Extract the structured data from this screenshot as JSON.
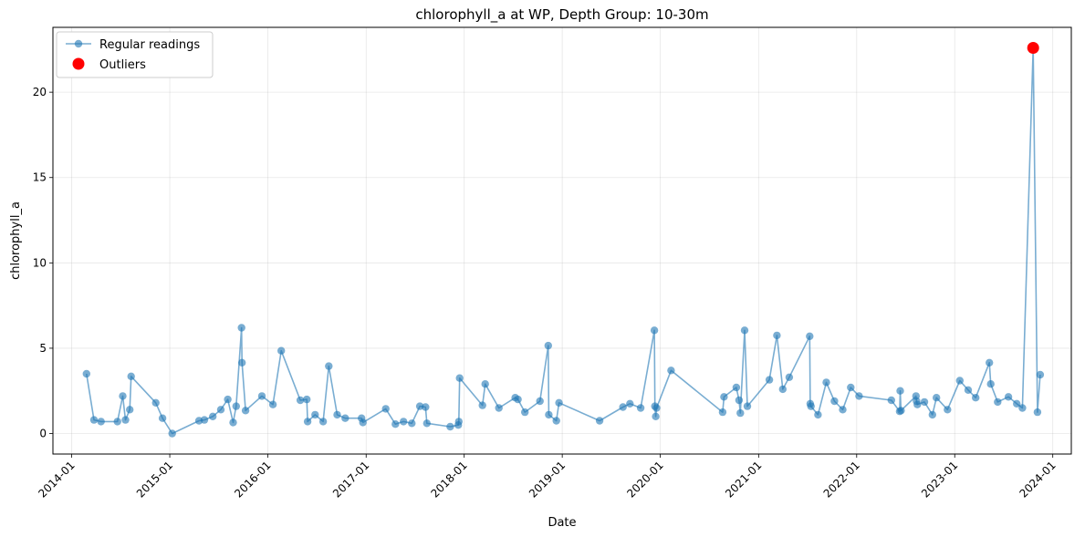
{
  "chart_data": {
    "type": "line",
    "title": "chlorophyll_a at WP, Depth Group: 10-30m",
    "xlabel": "Date",
    "ylabel": "chlorophyll_a",
    "x_tick_labels": [
      "2014-01",
      "2015-01",
      "2016-01",
      "2017-01",
      "2018-01",
      "2019-01",
      "2020-01",
      "2021-01",
      "2022-01",
      "2023-01",
      "2024-01"
    ],
    "y_ticks": [
      0,
      5,
      10,
      15,
      20
    ],
    "xlim": [
      "2013-10-23",
      "2024-03-10"
    ],
    "ylim": [
      -1.2,
      23.8
    ],
    "grid": true,
    "legend_position": "top-left",
    "colors": {
      "regular": "#1f77b4",
      "outlier": "#ff0000"
    },
    "series": [
      {
        "name": "Regular readings",
        "style": "line-marker",
        "points": [
          [
            "2014-02-25",
            3.5
          ],
          [
            "2014-03-25",
            0.8
          ],
          [
            "2014-04-20",
            0.7
          ],
          [
            "2014-06-20",
            0.7
          ],
          [
            "2014-07-10",
            2.2
          ],
          [
            "2014-07-20",
            0.8
          ],
          [
            "2014-08-05",
            1.4
          ],
          [
            "2014-08-10",
            3.35
          ],
          [
            "2014-11-10",
            1.8
          ],
          [
            "2014-12-05",
            0.9
          ],
          [
            "2015-01-10",
            0.0
          ],
          [
            "2015-04-20",
            0.75
          ],
          [
            "2015-05-10",
            0.8
          ],
          [
            "2015-06-10",
            1.0
          ],
          [
            "2015-07-10",
            1.4
          ],
          [
            "2015-08-05",
            2.0
          ],
          [
            "2015-08-25",
            0.65
          ],
          [
            "2015-09-05",
            1.6
          ],
          [
            "2015-09-25",
            6.2
          ],
          [
            "2015-09-27",
            4.15
          ],
          [
            "2015-10-10",
            1.35
          ],
          [
            "2015-12-10",
            2.2
          ],
          [
            "2016-01-20",
            1.7
          ],
          [
            "2016-02-20",
            4.85
          ],
          [
            "2016-05-01",
            1.95
          ],
          [
            "2016-05-25",
            2.0
          ],
          [
            "2016-05-28",
            0.7
          ],
          [
            "2016-06-25",
            1.1
          ],
          [
            "2016-07-25",
            0.7
          ],
          [
            "2016-08-15",
            3.95
          ],
          [
            "2016-09-15",
            1.1
          ],
          [
            "2016-10-15",
            0.9
          ],
          [
            "2016-12-15",
            0.9
          ],
          [
            "2016-12-20",
            0.65
          ],
          [
            "2017-03-15",
            1.45
          ],
          [
            "2017-04-20",
            0.55
          ],
          [
            "2017-05-20",
            0.7
          ],
          [
            "2017-06-20",
            0.6
          ],
          [
            "2017-07-20",
            1.6
          ],
          [
            "2017-08-10",
            1.55
          ],
          [
            "2017-08-15",
            0.6
          ],
          [
            "2017-11-10",
            0.4
          ],
          [
            "2017-12-10",
            0.5
          ],
          [
            "2017-12-12",
            0.7
          ],
          [
            "2017-12-15",
            3.25
          ],
          [
            "2018-03-10",
            1.65
          ],
          [
            "2018-03-20",
            2.9
          ],
          [
            "2018-05-10",
            1.5
          ],
          [
            "2018-07-10",
            2.1
          ],
          [
            "2018-07-20",
            2.0
          ],
          [
            "2018-08-15",
            1.25
          ],
          [
            "2018-10-10",
            1.9
          ],
          [
            "2018-11-10",
            5.15
          ],
          [
            "2018-11-12",
            1.1
          ],
          [
            "2018-12-10",
            0.75
          ],
          [
            "2018-12-20",
            1.8
          ],
          [
            "2019-05-20",
            0.75
          ],
          [
            "2019-08-15",
            1.55
          ],
          [
            "2019-09-10",
            1.75
          ],
          [
            "2019-10-20",
            1.5
          ],
          [
            "2019-12-10",
            6.05
          ],
          [
            "2019-12-12",
            1.6
          ],
          [
            "2019-12-15",
            1.0
          ],
          [
            "2019-12-18",
            1.5
          ],
          [
            "2020-02-10",
            3.7
          ],
          [
            "2020-08-20",
            1.25
          ],
          [
            "2020-08-25",
            2.15
          ],
          [
            "2020-10-10",
            2.7
          ],
          [
            "2020-10-20",
            1.95
          ],
          [
            "2020-10-25",
            1.2
          ],
          [
            "2020-11-10",
            6.05
          ],
          [
            "2020-11-20",
            1.6
          ],
          [
            "2021-02-10",
            3.15
          ],
          [
            "2021-03-10",
            5.75
          ],
          [
            "2021-04-01",
            2.6
          ],
          [
            "2021-04-25",
            3.3
          ],
          [
            "2021-07-10",
            5.7
          ],
          [
            "2021-07-12",
            1.75
          ],
          [
            "2021-07-15",
            1.6
          ],
          [
            "2021-08-10",
            1.1
          ],
          [
            "2021-09-10",
            3.0
          ],
          [
            "2021-10-10",
            1.9
          ],
          [
            "2021-11-10",
            1.4
          ],
          [
            "2021-12-10",
            2.7
          ],
          [
            "2022-01-10",
            2.2
          ],
          [
            "2022-05-10",
            1.95
          ],
          [
            "2022-06-10",
            1.3
          ],
          [
            "2022-06-12",
            2.5
          ],
          [
            "2022-06-15",
            1.35
          ],
          [
            "2022-08-10",
            2.2
          ],
          [
            "2022-08-12",
            1.9
          ],
          [
            "2022-08-15",
            1.7
          ],
          [
            "2022-09-10",
            1.85
          ],
          [
            "2022-10-10",
            1.1
          ],
          [
            "2022-10-25",
            2.1
          ],
          [
            "2022-12-05",
            1.4
          ],
          [
            "2023-01-20",
            3.1
          ],
          [
            "2023-02-20",
            2.55
          ],
          [
            "2023-03-20",
            2.1
          ],
          [
            "2023-05-10",
            4.15
          ],
          [
            "2023-05-15",
            2.9
          ],
          [
            "2023-06-10",
            1.85
          ],
          [
            "2023-07-20",
            2.15
          ],
          [
            "2023-08-20",
            1.75
          ],
          [
            "2023-09-10",
            1.5
          ],
          [
            "2023-10-20",
            22.6
          ],
          [
            "2023-11-05",
            1.25
          ],
          [
            "2023-11-15",
            3.45
          ]
        ]
      },
      {
        "name": "Outliers",
        "style": "marker",
        "points": [
          [
            "2023-10-20",
            22.6
          ]
        ]
      }
    ]
  }
}
